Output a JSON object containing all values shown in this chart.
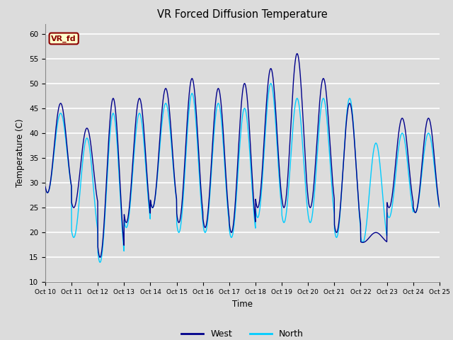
{
  "title": "VR Forced Diffusion Temperature",
  "xlabel": "Time",
  "ylabel": "Temperature (C)",
  "ylim": [
    10,
    62
  ],
  "yticks": [
    10,
    15,
    20,
    25,
    30,
    35,
    40,
    45,
    50,
    55,
    60
  ],
  "xtick_labels": [
    "Oct 10",
    "Oct 11",
    "Oct 12",
    "Oct 13",
    "Oct 14",
    "Oct 15",
    "Oct 16",
    "Oct 17",
    "Oct 18",
    "Oct 19",
    "Oct 20",
    "Oct 21",
    "Oct 22",
    "Oct 23",
    "Oct 24",
    "Oct 25"
  ],
  "west_color": "#00008B",
  "north_color": "#00CCFF",
  "background_color": "#DCDCDC",
  "plot_bg_color": "#DCDCDC",
  "grid_color": "#FFFFFF",
  "legend_west": "West",
  "legend_north": "North",
  "annotation_text": "VR_fd",
  "annotation_bg": "#FFFFCC",
  "annotation_border": "#8B0000",
  "peak_w": [
    46,
    41,
    47,
    47,
    49,
    51,
    49,
    50,
    53,
    56,
    51,
    46,
    20,
    43,
    43
  ],
  "trough_w": [
    28,
    25,
    15,
    22,
    25,
    22,
    21,
    20,
    25,
    25,
    25,
    20,
    18,
    25,
    24
  ],
  "peak_n": [
    44,
    39,
    44,
    44,
    46,
    48,
    46,
    45,
    50,
    47,
    47,
    47,
    38,
    40,
    40
  ],
  "trough_n": [
    28,
    19,
    14,
    21,
    25,
    20,
    20,
    19,
    23,
    22,
    22,
    19,
    18,
    23,
    24
  ]
}
